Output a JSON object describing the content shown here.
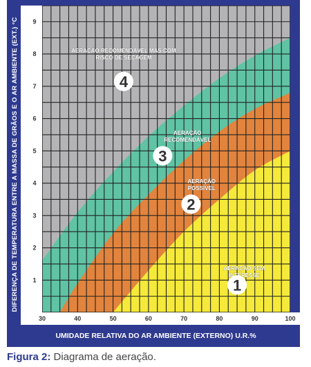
{
  "chart_data": {
    "type": "area",
    "ylabel": "DIFERENÇA DE TEMPERATURA ENTRE A MASSA DE GRÃOS E O AR AMBIENTE (EXT.) °C",
    "xlabel": "UMIDADE RELATIVA DO AR AMBIENTE (EXTERNO) U.R.%",
    "xlim": [
      30,
      100
    ],
    "ylim": [
      0,
      9.5
    ],
    "x_ticks": [
      "30",
      "40",
      "50",
      "60",
      "70",
      "80",
      "90",
      "100"
    ],
    "y_ticks": [
      "1",
      "2",
      "3",
      "4",
      "5",
      "6",
      "7",
      "8",
      "9"
    ],
    "grid": true,
    "boundaries": [
      {
        "between_zones": [
          1,
          2
        ],
        "points": [
          [
            50,
            0
          ],
          [
            60,
            1.3
          ],
          [
            70,
            2.5
          ],
          [
            80,
            3.5
          ],
          [
            90,
            4.4
          ],
          [
            100,
            5.0
          ]
        ]
      },
      {
        "between_zones": [
          2,
          3
        ],
        "points": [
          [
            35,
            0
          ],
          [
            40,
            0.9
          ],
          [
            50,
            2.45
          ],
          [
            60,
            3.65
          ],
          [
            70,
            4.7
          ],
          [
            80,
            5.6
          ],
          [
            90,
            6.3
          ],
          [
            100,
            6.8
          ]
        ]
      },
      {
        "between_zones": [
          3,
          4
        ],
        "points": [
          [
            30,
            1.6
          ],
          [
            40,
            3.1
          ],
          [
            50,
            4.35
          ],
          [
            60,
            5.45
          ],
          [
            70,
            6.4
          ],
          [
            80,
            7.25
          ],
          [
            90,
            7.95
          ],
          [
            100,
            8.5
          ]
        ]
      }
    ],
    "zones": [
      {
        "number": "1",
        "label": "AERAÇÃO SEM INTERESSE",
        "label_lines": [
          "AERAÇÃO SEM",
          "INTERESSE"
        ],
        "color": "#f5e93a",
        "label_at": [
          87,
          1.3
        ],
        "badge_at": [
          85,
          0.85
        ]
      },
      {
        "number": "2",
        "label": "AERAÇÃO POSSÍVEL",
        "label_lines": [
          "AERAÇÃO",
          "POSSÍVEL"
        ],
        "color": "#e2843d",
        "label_at": [
          75,
          4.0
        ],
        "badge_at": [
          72,
          3.35
        ]
      },
      {
        "number": "3",
        "label": "AERAÇÃO RECOMENDÁVEL",
        "label_lines": [
          "AERAÇÃO",
          "RECOMENDÁVEL"
        ],
        "color": "#5fc3a4",
        "label_at": [
          71,
          5.5
        ],
        "badge_at": [
          64,
          4.85
        ]
      },
      {
        "number": "4",
        "label": "AERAÇÃO RECOMENDÁVEL MAS COM RISCO DE SECAGEM",
        "label_lines": [
          "AERAÇÃO RECOMENDÁVEL MAS COM",
          "RISCO DE SECAGEM"
        ],
        "color": "#b4b4b6",
        "label_at": [
          53,
          8.05
        ],
        "badge_at": [
          53,
          7.15
        ]
      }
    ],
    "colors": {
      "frame": "#2e3a8f",
      "grid": "#222222",
      "tick_text": "#333333",
      "label_text": "#ffffff"
    }
  },
  "caption": {
    "prefix": "Figura 2:",
    "text": " Diagrama de aeração."
  }
}
